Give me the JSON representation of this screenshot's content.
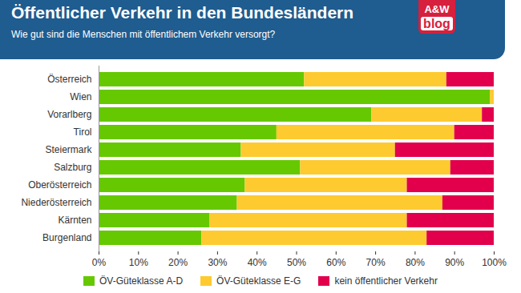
{
  "chart_data": {
    "type": "bar",
    "orientation": "horizontal",
    "stacked": true,
    "title": "Öffentlicher Verkehr in den Bundesländern",
    "subtitle": "Wie gut sind die Menschen mit öffentlichem Verkehr versorgt?",
    "logo": {
      "top": "A&W",
      "bottom": "blog"
    },
    "categories": [
      "Österreich",
      "Wien",
      "Vorarlberg",
      "Tirol",
      "Steiermark",
      "Salzburg",
      "Oberösterreich",
      "Niederösterreich",
      "Kärnten",
      "Burgenland"
    ],
    "series": [
      {
        "name": "ÖV-Güteklasse A-D",
        "color": "#66c800",
        "values": [
          52,
          99,
          69,
          45,
          36,
          51,
          37,
          35,
          28,
          26
        ]
      },
      {
        "name": "ÖV-Güteklasse E-G",
        "color": "#fdca30",
        "values": [
          36,
          1,
          28,
          45,
          39,
          38,
          41,
          52,
          50,
          57
        ]
      },
      {
        "name": "kein öffentlicher Verkehr",
        "color": "#e2004c",
        "values": [
          12,
          0,
          3,
          10,
          25,
          11,
          22,
          13,
          22,
          17
        ]
      }
    ],
    "xlim": [
      0,
      100
    ],
    "xticks": [
      {
        "value": 0,
        "label": "0%"
      },
      {
        "value": 10,
        "label": "10%"
      },
      {
        "value": 20,
        "label": "20%"
      },
      {
        "value": 30,
        "label": "30%"
      },
      {
        "value": 40,
        "label": "40%"
      },
      {
        "value": 50,
        "label": "50%"
      },
      {
        "value": 60,
        "label": "60%"
      },
      {
        "value": 70,
        "label": "70%"
      },
      {
        "value": 80,
        "label": "80%"
      },
      {
        "value": 90,
        "label": "90%"
      },
      {
        "value": 100,
        "label": "100%"
      }
    ],
    "legend": "bottom"
  }
}
